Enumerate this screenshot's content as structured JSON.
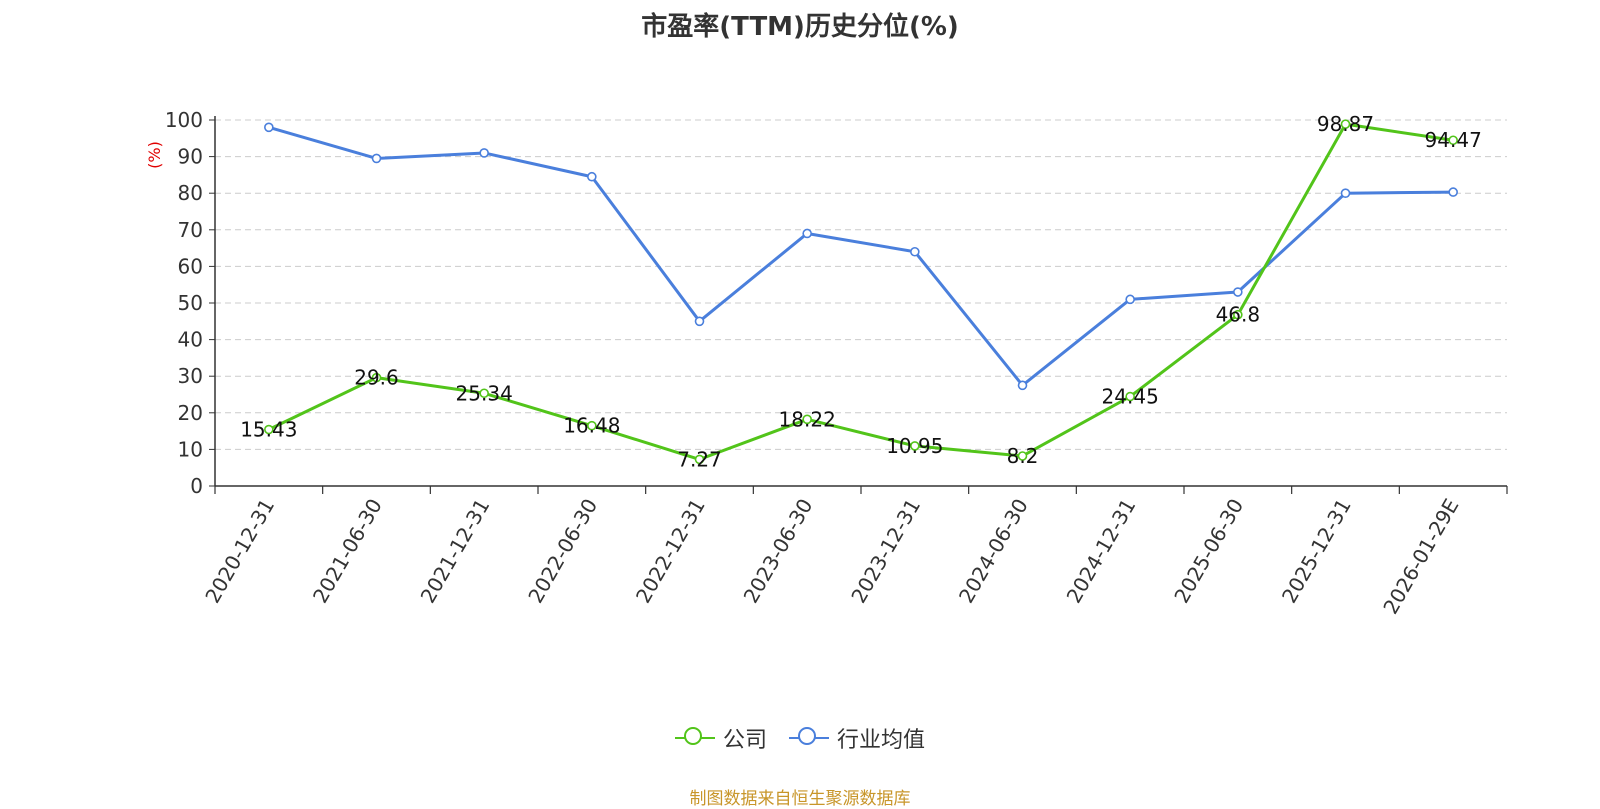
{
  "title": "市盈率(TTM)历史分位(%)",
  "source": "制图数据来自恒生聚源数据库",
  "chart_data": {
    "type": "line",
    "title": "市盈率(TTM)历史分位(%)",
    "ylabel": "(%)",
    "ylim": [
      0,
      100
    ],
    "yticks": [
      0,
      10,
      20,
      30,
      40,
      50,
      60,
      70,
      80,
      90,
      100
    ],
    "grid": true,
    "legend_position": "bottom",
    "categories": [
      "2020-12-31",
      "2021-06-30",
      "2021-12-31",
      "2022-06-30",
      "2022-12-31",
      "2023-06-30",
      "2023-12-31",
      "2024-06-30",
      "2024-12-31",
      "2025-06-30",
      "2025-12-31",
      "2026-01-29E"
    ],
    "series": [
      {
        "name": "公司",
        "color": "#52c41a",
        "values": [
          15.43,
          29.6,
          25.34,
          16.48,
          7.27,
          18.22,
          10.95,
          8.2,
          24.45,
          46.8,
          98.87,
          94.47
        ],
        "labels": [
          "15.43",
          "29.6",
          "25.34",
          "16.48",
          "7.27",
          "18.22",
          "10.95",
          "8.2",
          "24.45",
          "46.8",
          "98.87",
          "94.47"
        ]
      },
      {
        "name": "行业均值",
        "color": "#4a7fdc",
        "values": [
          98,
          89.5,
          91,
          84.5,
          45,
          69,
          64,
          27.5,
          51,
          53,
          80,
          80.3
        ]
      }
    ]
  }
}
